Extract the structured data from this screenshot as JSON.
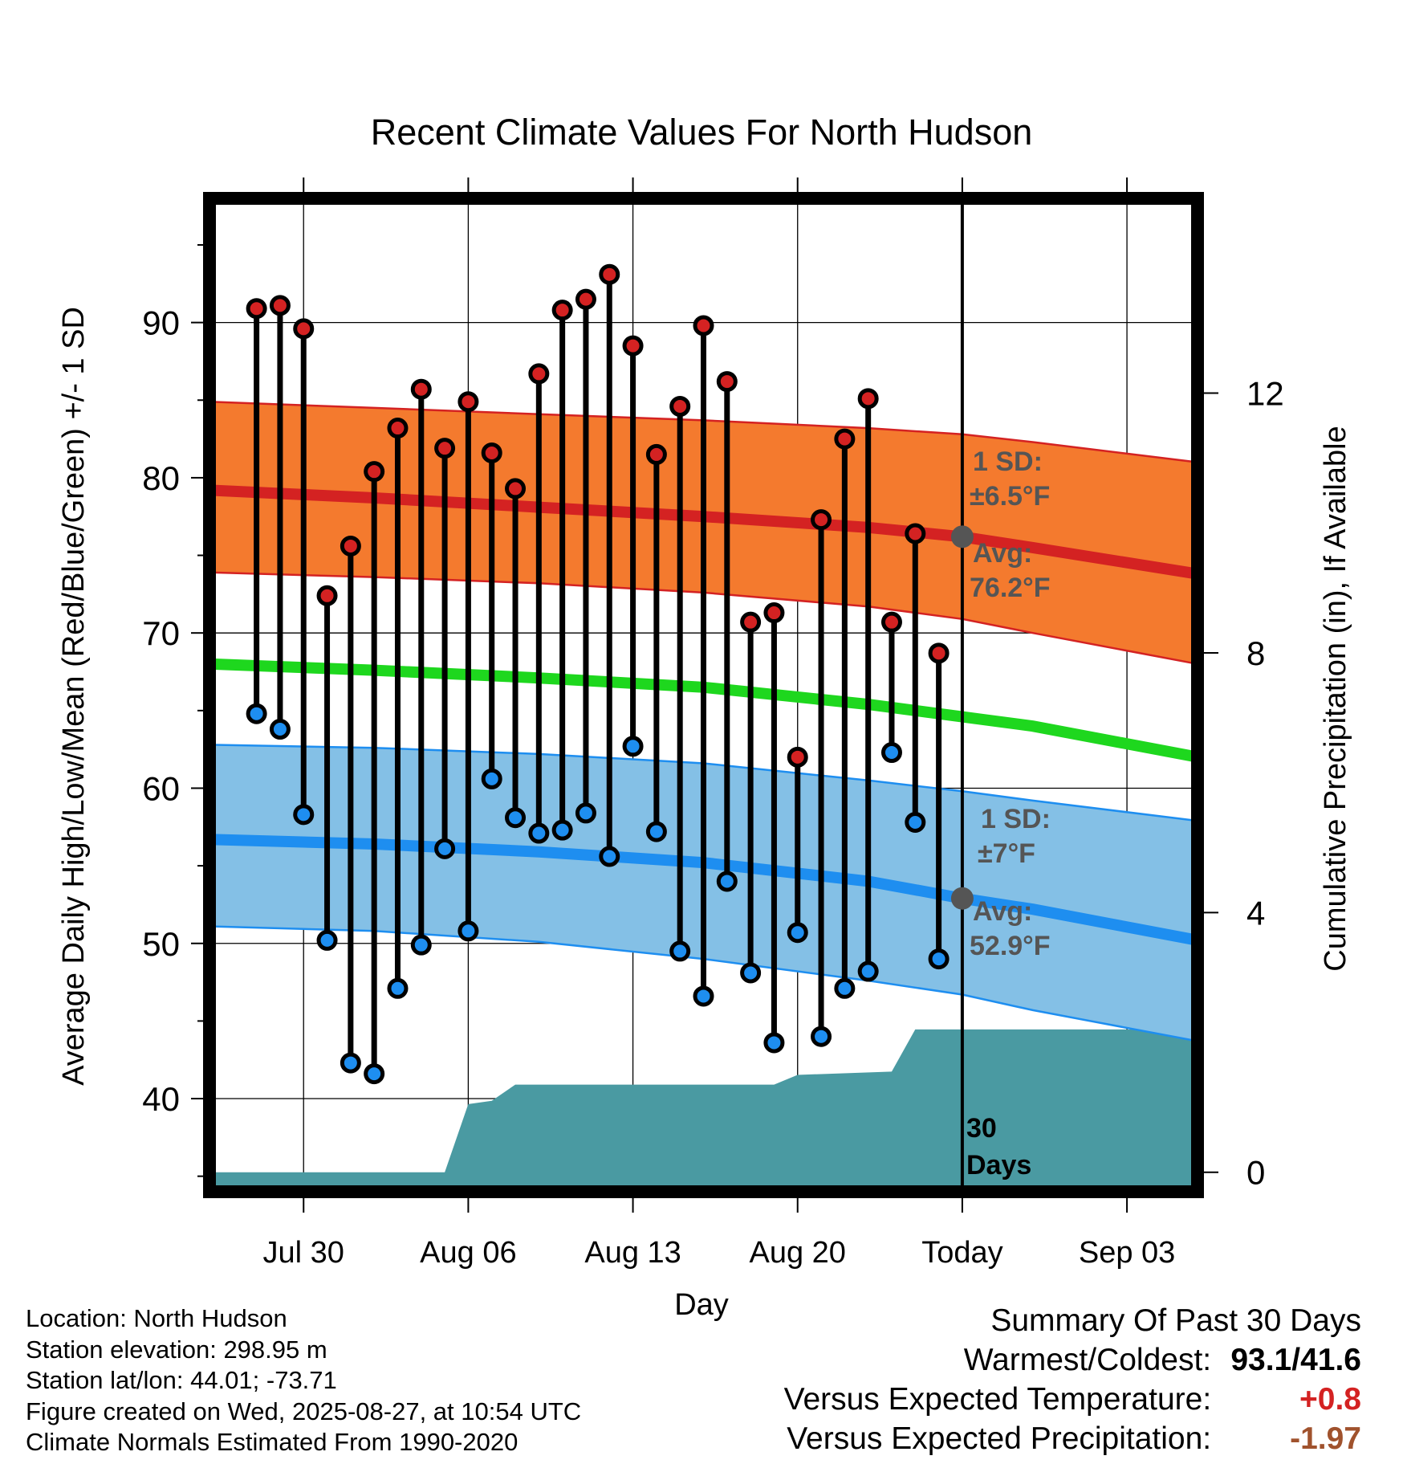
{
  "chart_data": {
    "type": "line",
    "title": "Recent Climate Values For North Hudson",
    "xlabel": "Day",
    "ylabel_left": "Average Daily High/Low/Mean (Red/Blue/Green) +/- 1 SD",
    "ylabel_right": "Cumulative Precipitation (in), If Available",
    "y_left_range": [
      34,
      98
    ],
    "y_left_ticks": [
      40,
      50,
      60,
      70,
      80,
      90
    ],
    "y_right_range": [
      -0.3,
      15.0
    ],
    "y_right_ticks": [
      0,
      4,
      8,
      12
    ],
    "x_range": [
      "2025-07-26",
      "2025-09-06"
    ],
    "x_ticks": [
      {
        "date": "2025-07-30",
        "label": "Jul 30"
      },
      {
        "date": "2025-08-06",
        "label": "Aug 06"
      },
      {
        "date": "2025-08-13",
        "label": "Aug 13"
      },
      {
        "date": "2025-08-20",
        "label": "Aug 20"
      },
      {
        "date": "2025-08-27",
        "label": "Today"
      },
      {
        "date": "2025-09-03",
        "label": "Sep 03"
      }
    ],
    "grid": true,
    "today_date": "2025-08-27",
    "daily_obs": {
      "dates": [
        "2025-07-28",
        "2025-07-29",
        "2025-07-30",
        "2025-07-31",
        "2025-08-01",
        "2025-08-02",
        "2025-08-03",
        "2025-08-04",
        "2025-08-05",
        "2025-08-06",
        "2025-08-07",
        "2025-08-08",
        "2025-08-09",
        "2025-08-10",
        "2025-08-11",
        "2025-08-12",
        "2025-08-13",
        "2025-08-14",
        "2025-08-15",
        "2025-08-16",
        "2025-08-17",
        "2025-08-18",
        "2025-08-19",
        "2025-08-20",
        "2025-08-21",
        "2025-08-22",
        "2025-08-23",
        "2025-08-24",
        "2025-08-25",
        "2025-08-26"
      ],
      "high": [
        90.9,
        91.1,
        89.6,
        72.4,
        75.6,
        80.4,
        83.2,
        85.7,
        81.9,
        84.9,
        81.6,
        79.3,
        86.7,
        90.8,
        91.5,
        93.1,
        88.5,
        81.5,
        84.6,
        89.8,
        86.2,
        70.7,
        71.3,
        62.0,
        77.3,
        82.5,
        85.1,
        70.7,
        76.4,
        68.7
      ],
      "low": [
        64.8,
        63.8,
        58.3,
        50.2,
        42.3,
        41.6,
        47.1,
        49.9,
        56.1,
        50.8,
        60.6,
        58.1,
        57.1,
        57.3,
        58.4,
        55.6,
        62.7,
        57.2,
        49.5,
        46.6,
        54.0,
        48.1,
        43.6,
        50.7,
        44.0,
        47.1,
        48.2,
        62.3,
        57.8,
        49.0
      ]
    },
    "normals": {
      "dates": [
        "2025-07-26",
        "2025-08-02",
        "2025-08-09",
        "2025-08-16",
        "2025-08-23",
        "2025-08-27",
        "2025-08-30",
        "2025-09-06"
      ],
      "avg_high": [
        79.2,
        78.7,
        78.1,
        77.5,
        76.8,
        76.2,
        75.5,
        73.8
      ],
      "high_sd_upper": [
        84.9,
        84.5,
        84.1,
        83.7,
        83.2,
        82.8,
        82.3,
        81.0
      ],
      "high_sd_lower": [
        73.9,
        73.6,
        73.2,
        72.6,
        71.7,
        70.9,
        70.0,
        68.0
      ],
      "avg_mean": [
        68.0,
        67.6,
        67.1,
        66.5,
        65.4,
        64.6,
        64.0,
        62.0
      ],
      "avg_low": [
        56.7,
        56.4,
        55.9,
        55.2,
        54.0,
        52.9,
        52.2,
        50.2
      ],
      "low_sd_upper": [
        62.8,
        62.6,
        62.2,
        61.6,
        60.5,
        59.8,
        59.2,
        57.9
      ],
      "low_sd_lower": [
        51.1,
        50.8,
        50.1,
        49.0,
        47.6,
        46.7,
        45.7,
        43.7
      ]
    },
    "precip_cumulative": {
      "dates": [
        "2025-07-26",
        "2025-08-04",
        "2025-08-05",
        "2025-08-06",
        "2025-08-07",
        "2025-08-08",
        "2025-08-19",
        "2025-08-20",
        "2025-08-24",
        "2025-08-25",
        "2025-09-06"
      ],
      "values": [
        0,
        0,
        0,
        1.05,
        1.1,
        1.35,
        1.35,
        1.5,
        1.55,
        2.2,
        2.2
      ]
    },
    "annotations": {
      "high_sd_label": "1 SD:",
      "high_sd_value": "±6.5°F",
      "high_avg_label": "Avg:",
      "high_avg_value": "76.2°F",
      "low_sd_label": "1 SD:",
      "low_sd_value": "±7°F",
      "low_avg_label": "Avg:",
      "low_avg_value": "52.9°F",
      "days_number": "30",
      "days_word": "Days"
    },
    "colors": {
      "high_band": "#f47a2e",
      "high_line": "#d42222",
      "low_band": "#84c0e6",
      "low_line": "#1e8ef0",
      "mean_line": "#1ed71e",
      "precip": "#4a9aa2",
      "today_marker": "#555555"
    }
  },
  "footer": {
    "location": "Location: North Hudson",
    "elevation": "Station elevation: 298.95 m",
    "latlon": "Station lat/lon: 44.01; -73.71",
    "created": "Figure created on Wed, 2025-08-27, at 10:54 UTC",
    "normals": "Climate Normals Estimated From 1990-2020"
  },
  "summary": {
    "title": "Summary Of Past 30 Days",
    "warm_cold_label": "Warmest/Coldest:",
    "warm_cold_value": "93.1/41.6",
    "temp_label": "Versus Expected Temperature:",
    "temp_value": "+0.8",
    "temp_color": "#d42222",
    "precip_label": "Versus Expected Precipitation:",
    "precip_value": "-1.97",
    "precip_color": "#a0522d"
  }
}
